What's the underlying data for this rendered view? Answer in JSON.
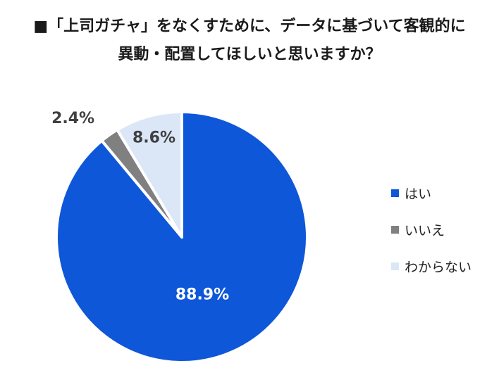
{
  "title_lines": [
    "■「上司ガチャ」をなくすために、データに基づいて客観的に",
    "異動・配置してほしいと思いますか？"
  ],
  "chart_data": {
    "type": "pie",
    "title": "■「上司ガチャ」をなくすために、データに基づいて客観的に異動・配置してほしいと思いますか？",
    "categories": [
      "はい",
      "いいえ",
      "わからない"
    ],
    "values": [
      88.9,
      2.4,
      8.6
    ],
    "labels": [
      "88.9%",
      "2.4%",
      "8.6%"
    ],
    "colors": [
      "#0e57d8",
      "#808080",
      "#dbe6f7"
    ],
    "label_colors": [
      "#ffffff",
      "#404040",
      "#404040"
    ],
    "legend": "right",
    "start": "top",
    "direction": "clockwise"
  }
}
